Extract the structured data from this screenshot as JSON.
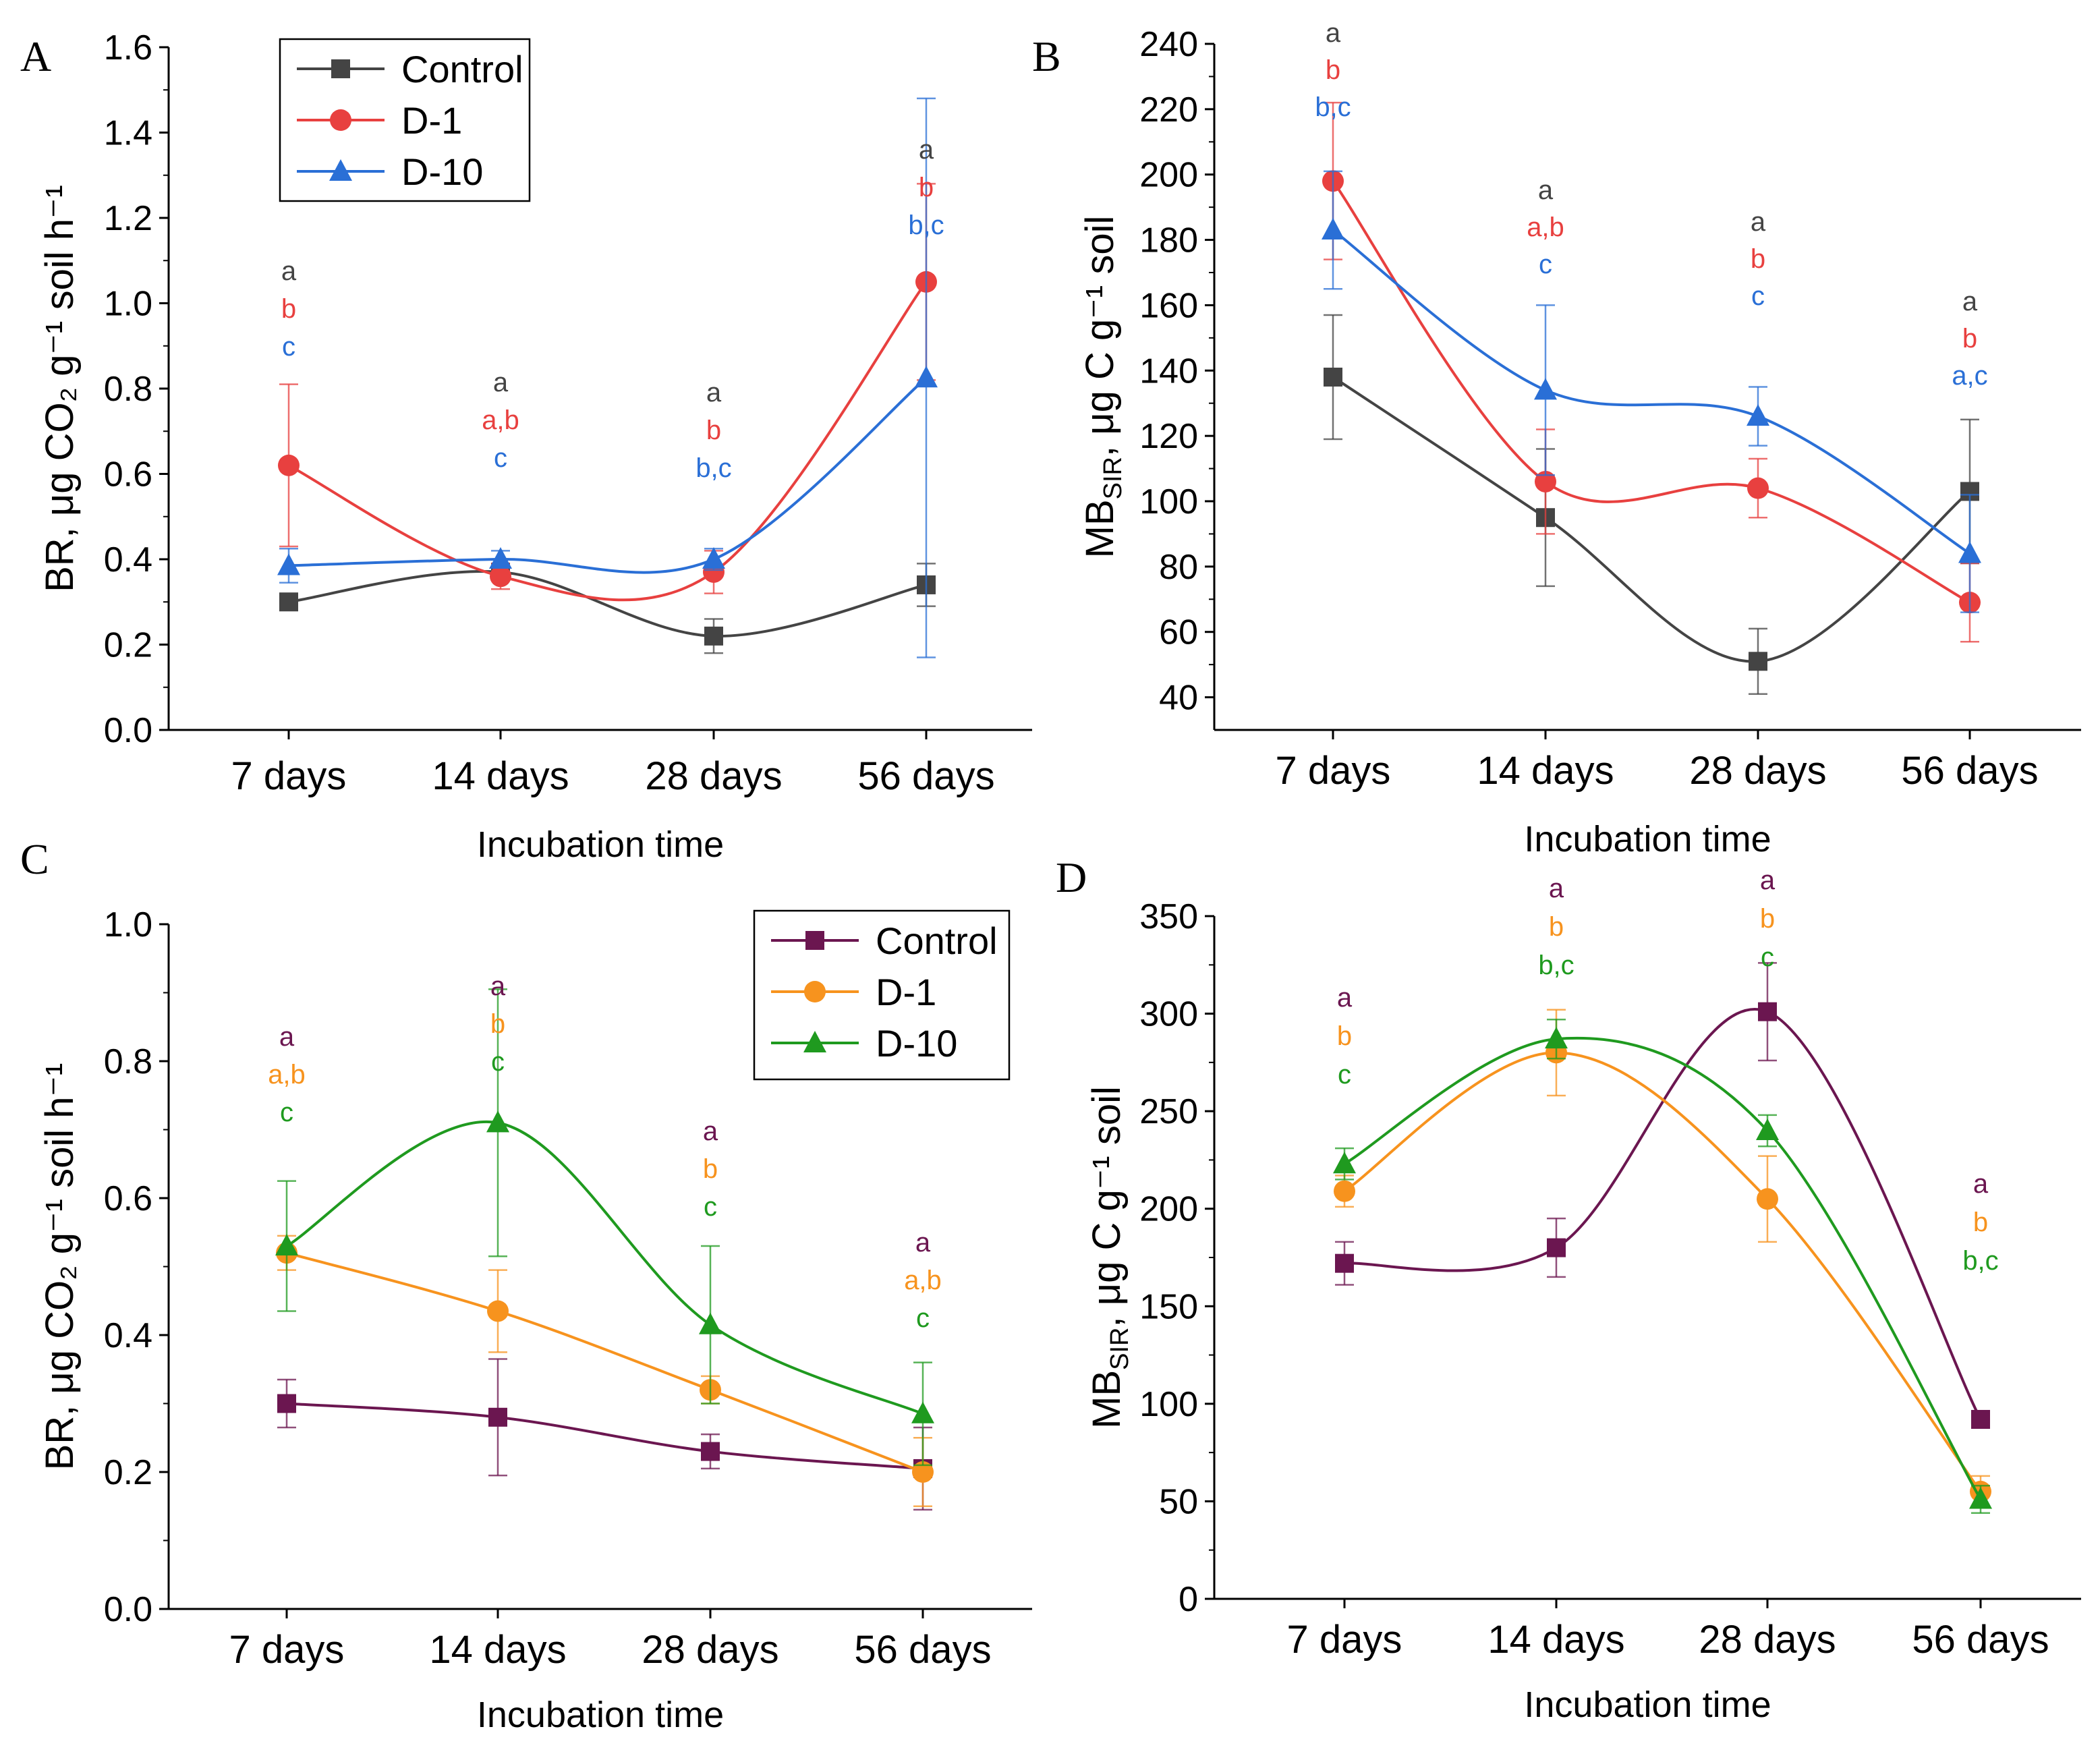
{
  "chart_data": [
    {
      "panel": "A",
      "type": "line",
      "ylabel": "BR, μg CO₂ g⁻¹ soil h⁻¹",
      "xlabel": "Incubation time",
      "categories": [
        "7 days",
        "14 days",
        "28 days",
        "56 days"
      ],
      "ylim": [
        0.0,
        1.6
      ],
      "yticks": [
        "0.0",
        "0.2",
        "0.4",
        "0.6",
        "0.8",
        "1.0",
        "1.2",
        "1.4",
        "1.6"
      ],
      "legend": true,
      "series": [
        {
          "name": "Control",
          "marker": "square",
          "color": "#444444",
          "values": [
            0.3,
            0.37,
            0.22,
            0.34
          ],
          "errors": [
            0.015,
            0.02,
            0.04,
            0.05
          ]
        },
        {
          "name": "D-1",
          "marker": "circle",
          "color": "#e8403f",
          "values": [
            0.62,
            0.36,
            0.37,
            1.05
          ],
          "errors": [
            0.19,
            0.03,
            0.05,
            0.23
          ]
        },
        {
          "name": "D-10",
          "marker": "triangle",
          "color": "#2a6fd6",
          "values": [
            0.385,
            0.4,
            0.4,
            0.825
          ],
          "errors": [
            0.04,
            0.02,
            0.025,
            0.655
          ]
        }
      ],
      "letters": [
        [
          [
            "a"
          ],
          [
            "b"
          ],
          [
            "c"
          ]
        ],
        [
          [
            "a"
          ],
          [
            "a,b"
          ],
          [
            "c"
          ]
        ],
        [
          [
            "a"
          ],
          [
            "b"
          ],
          [
            "b,c"
          ]
        ],
        [
          [
            "a"
          ],
          [
            "b"
          ],
          [
            "b,c"
          ]
        ]
      ]
    },
    {
      "panel": "B",
      "type": "line",
      "ylabel": "MB",
      "ylabel_sub": "SIR",
      "ylabel_rest": ", μg C g⁻¹ soil",
      "xlabel": "Incubation time",
      "categories": [
        "7 days",
        "14 days",
        "28 days",
        "56 days"
      ],
      "ylim": [
        30,
        240
      ],
      "yticks": [
        "40",
        "60",
        "80",
        "100",
        "120",
        "140",
        "160",
        "180",
        "200",
        "220",
        "240"
      ],
      "legend": false,
      "series": [
        {
          "name": "Control",
          "marker": "square",
          "color": "#444444",
          "values": [
            138,
            95,
            51,
            103
          ],
          "errors": [
            19,
            21,
            10,
            22
          ]
        },
        {
          "name": "D-1",
          "marker": "circle",
          "color": "#e8403f",
          "values": [
            198,
            106,
            104,
            69
          ],
          "errors": [
            24,
            16,
            9,
            12
          ]
        },
        {
          "name": "D-10",
          "marker": "triangle",
          "color": "#2a6fd6",
          "values": [
            183,
            134,
            126,
            84
          ],
          "errors": [
            18,
            26,
            9,
            18
          ]
        }
      ],
      "letters": [
        [
          [
            "a"
          ],
          [
            "b"
          ],
          [
            "b,c"
          ]
        ],
        [
          [
            "a"
          ],
          [
            "a,b"
          ],
          [
            "c"
          ]
        ],
        [
          [
            "a"
          ],
          [
            "b"
          ],
          [
            "c"
          ]
        ],
        [
          [
            "a"
          ],
          [
            "b"
          ],
          [
            "a,c"
          ]
        ]
      ]
    },
    {
      "panel": "C",
      "type": "line",
      "ylabel": "BR, μg CO₂ g⁻¹ soil h⁻¹",
      "xlabel": "Incubation time",
      "categories": [
        "7 days",
        "14 days",
        "28 days",
        "56 days"
      ],
      "ylim": [
        0.0,
        1.0
      ],
      "yticks": [
        "0.0",
        "0.2",
        "0.4",
        "0.6",
        "0.8",
        "1.0"
      ],
      "legend": true,
      "series": [
        {
          "name": "Control",
          "marker": "square",
          "color": "#6b1650",
          "values": [
            0.3,
            0.28,
            0.23,
            0.205
          ],
          "errors": [
            0.035,
            0.085,
            0.025,
            0.06
          ]
        },
        {
          "name": "D-1",
          "marker": "circle",
          "color": "#f7931e",
          "values": [
            0.52,
            0.435,
            0.32,
            0.2
          ],
          "errors": [
            0.025,
            0.06,
            0.02,
            0.05
          ]
        },
        {
          "name": "D-10",
          "marker": "triangle",
          "color": "#1f9a1f",
          "values": [
            0.53,
            0.71,
            0.415,
            0.285
          ],
          "errors": [
            0.095,
            0.195,
            0.115,
            0.075
          ]
        }
      ],
      "letters": [
        [
          [
            "a"
          ],
          [
            "a,b"
          ],
          [
            "c"
          ]
        ],
        [
          [
            "a"
          ],
          [
            "b"
          ],
          [
            "c"
          ]
        ],
        [
          [
            "a"
          ],
          [
            "b"
          ],
          [
            "c"
          ]
        ],
        [
          [
            "a"
          ],
          [
            "a,b"
          ],
          [
            "c"
          ]
        ]
      ]
    },
    {
      "panel": "D",
      "type": "line",
      "ylabel": "MB",
      "ylabel_sub": "SIR",
      "ylabel_rest": ", μg C g⁻¹ soil",
      "xlabel": "Incubation time",
      "categories": [
        "7 days",
        "14 days",
        "28 days",
        "56 days"
      ],
      "ylim": [
        0,
        350
      ],
      "yticks": [
        "0",
        "50",
        "100",
        "150",
        "200",
        "250",
        "300",
        "350"
      ],
      "legend": false,
      "series": [
        {
          "name": "Control",
          "marker": "square",
          "color": "#6b1650",
          "values": [
            172,
            180,
            301,
            92
          ],
          "errors": [
            11,
            15,
            25,
            4
          ]
        },
        {
          "name": "D-1",
          "marker": "circle",
          "color": "#f7931e",
          "values": [
            209,
            280,
            205,
            55
          ],
          "errors": [
            8,
            22,
            22,
            8
          ]
        },
        {
          "name": "D-10",
          "marker": "triangle",
          "color": "#1f9a1f",
          "values": [
            223,
            287,
            240,
            51
          ],
          "errors": [
            8,
            10,
            8,
            7
          ]
        }
      ],
      "letters": [
        [
          [
            "a"
          ],
          [
            "b"
          ],
          [
            "c"
          ]
        ],
        [
          [
            "a"
          ],
          [
            "b"
          ],
          [
            "b,c"
          ]
        ],
        [
          [
            "a"
          ],
          [
            "b"
          ],
          [
            "c"
          ]
        ],
        [
          [
            "a"
          ],
          [
            "b"
          ],
          [
            "b,c"
          ]
        ]
      ]
    }
  ]
}
